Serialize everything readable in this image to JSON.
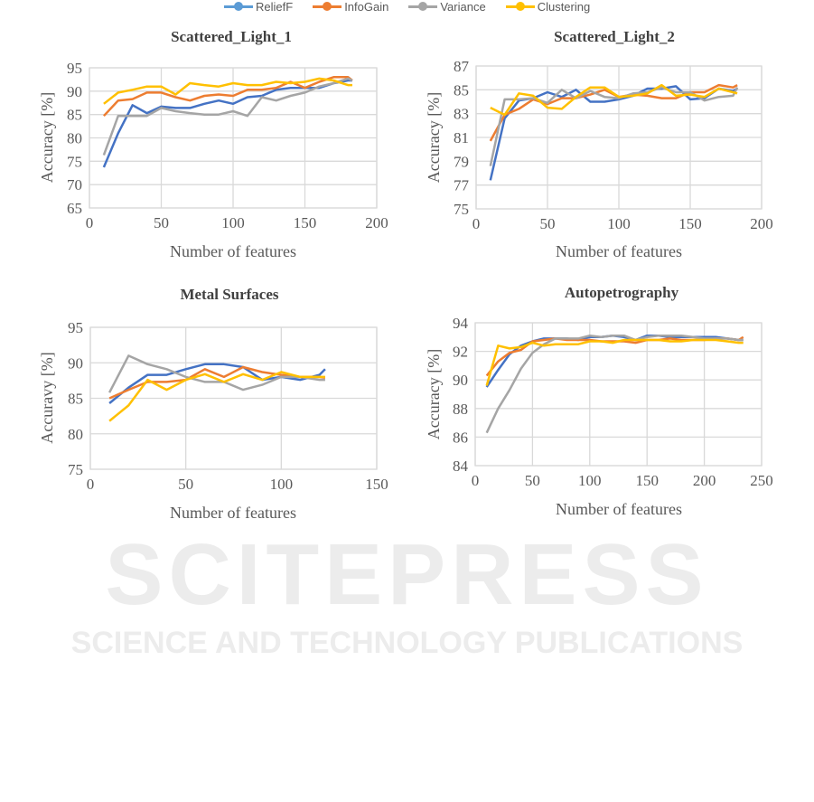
{
  "legend": [
    {
      "name": "ReliefF",
      "color": "#4472C4",
      "marker": "#5B9BD5"
    },
    {
      "name": "InfoGain",
      "color": "#ED7D31",
      "marker": "#ED7D31"
    },
    {
      "name": "Variance",
      "color": "#A5A5A5",
      "marker": "#A5A5A5"
    },
    {
      "name": "Clustering",
      "color": "#FFC000",
      "marker": "#FFC000"
    }
  ],
  "watermark": {
    "title": "SCITEPRESS",
    "subtitle": "SCIENCE AND TECHNOLOGY PUBLICATIONS"
  },
  "chart_data": [
    {
      "type": "line",
      "title": "Scattered_Light_1",
      "xlabel": "Number of features",
      "ylabel": "Accuracy [%]",
      "xlim": [
        0,
        200
      ],
      "ylim": [
        65,
        95
      ],
      "xticks": [
        0,
        50,
        100,
        150,
        200
      ],
      "yticks": [
        65,
        70,
        75,
        80,
        85,
        90,
        95
      ],
      "grid": true,
      "legend": "top",
      "x": [
        10,
        20,
        30,
        40,
        50,
        60,
        70,
        80,
        90,
        100,
        110,
        120,
        130,
        140,
        150,
        160,
        170,
        180,
        183
      ],
      "series": [
        {
          "name": "ReliefF",
          "values": [
            73.7,
            81,
            87,
            85.3,
            86.7,
            86.4,
            86.4,
            87.3,
            88,
            87.3,
            88.7,
            89,
            90.3,
            90.7,
            90.7,
            90.7,
            91.7,
            92.3,
            92.3
          ]
        },
        {
          "name": "InfoGain",
          "values": [
            84.7,
            88,
            88.3,
            89.7,
            89.7,
            88.7,
            88,
            89,
            89.3,
            89,
            90.3,
            90.3,
            90.7,
            92,
            90.7,
            92,
            93,
            93,
            92.3
          ]
        },
        {
          "name": "Variance",
          "values": [
            76.3,
            84.7,
            84.7,
            84.7,
            86.4,
            85.7,
            85.3,
            85,
            85,
            85.7,
            84.7,
            88.7,
            88,
            89,
            89.7,
            91,
            91.7,
            92.7,
            92.3
          ]
        },
        {
          "name": "Clustering",
          "values": [
            87.3,
            89.7,
            90.3,
            91,
            91,
            89.3,
            91.7,
            91.3,
            91,
            91.7,
            91.3,
            91.3,
            92,
            91.7,
            92,
            92.7,
            92.3,
            91.3,
            91.3
          ]
        }
      ]
    },
    {
      "type": "line",
      "title": "Scattered_Light_2",
      "xlabel": "Number of features",
      "ylabel": "Accuracy [%]",
      "xlim": [
        0,
        200
      ],
      "ylim": [
        75,
        87
      ],
      "xticks": [
        0,
        50,
        100,
        150,
        200
      ],
      "yticks": [
        75,
        77,
        79,
        81,
        83,
        85,
        87
      ],
      "grid": true,
      "legend": "top",
      "x": [
        10,
        20,
        30,
        40,
        50,
        60,
        70,
        80,
        90,
        100,
        110,
        120,
        130,
        140,
        150,
        160,
        170,
        180,
        183
      ],
      "series": [
        {
          "name": "ReliefF",
          "values": [
            77.4,
            82.6,
            84.1,
            84.3,
            84.8,
            84.4,
            85,
            84,
            84,
            84.2,
            84.5,
            85.1,
            85.1,
            85.3,
            84.2,
            84.3,
            85.1,
            84.9,
            85.1
          ]
        },
        {
          "name": "InfoGain",
          "values": [
            80.7,
            82.9,
            83.4,
            84.2,
            83.8,
            84.3,
            84.3,
            84.6,
            85,
            84.4,
            84.6,
            84.5,
            84.3,
            84.3,
            84.8,
            84.8,
            85.4,
            85.2,
            85.4
          ]
        },
        {
          "name": "Variance",
          "values": [
            78.6,
            84.2,
            84.2,
            84.3,
            83.9,
            85,
            84.3,
            84.9,
            84.4,
            84.3,
            84.7,
            84.8,
            85.2,
            84.8,
            84.8,
            84.1,
            84.4,
            84.5,
            85.2
          ]
        },
        {
          "name": "Clustering",
          "values": [
            83.5,
            82.9,
            84.7,
            84.5,
            83.5,
            83.4,
            84.4,
            85.2,
            85.2,
            84.4,
            84.5,
            84.7,
            85.4,
            84.5,
            84.6,
            84.4,
            85.1,
            84.8,
            84.7
          ]
        }
      ]
    },
    {
      "type": "line",
      "title": "Metal Surfaces",
      "xlabel": "Number of features",
      "ylabel": "Accuravy [%]",
      "xlim": [
        0,
        150
      ],
      "ylim": [
        75,
        95
      ],
      "xticks": [
        0,
        50,
        100,
        150
      ],
      "yticks": [
        75,
        80,
        85,
        90,
        95
      ],
      "grid": true,
      "legend": "top",
      "x": [
        10,
        20,
        30,
        40,
        50,
        60,
        70,
        80,
        90,
        100,
        110,
        120,
        123
      ],
      "series": [
        {
          "name": "ReliefF",
          "values": [
            84.3,
            86.5,
            88.3,
            88.3,
            89.1,
            89.8,
            89.8,
            89.4,
            87.6,
            88,
            87.6,
            88.3,
            89.1
          ]
        },
        {
          "name": "InfoGain",
          "values": [
            85,
            86.2,
            87.3,
            87.3,
            87.6,
            89.1,
            88,
            89.4,
            88.7,
            88.3,
            88,
            88,
            87.9
          ]
        },
        {
          "name": "Variance",
          "values": [
            85.8,
            91,
            89.8,
            89.1,
            88,
            87.3,
            87.3,
            86.2,
            86.9,
            88,
            88,
            87.6,
            87.6
          ]
        },
        {
          "name": "Clustering",
          "values": [
            81.8,
            84,
            87.6,
            86.2,
            87.6,
            88.4,
            87.3,
            88.4,
            87.6,
            88.7,
            88,
            88,
            88
          ]
        }
      ]
    },
    {
      "type": "line",
      "title": "Autopetrography",
      "xlabel": "Number of features",
      "ylabel": "Accuracy [%]",
      "xlim": [
        0,
        250
      ],
      "ylim": [
        84,
        94
      ],
      "xticks": [
        0,
        50,
        100,
        150,
        200,
        250
      ],
      "yticks": [
        84,
        86,
        88,
        90,
        92,
        94
      ],
      "grid": true,
      "legend": "top",
      "x": [
        10,
        20,
        30,
        40,
        50,
        60,
        70,
        80,
        90,
        100,
        110,
        120,
        130,
        140,
        150,
        160,
        170,
        180,
        190,
        200,
        210,
        220,
        230,
        234
      ],
      "series": [
        {
          "name": "ReliefF",
          "values": [
            89.5,
            90.7,
            91.8,
            92.4,
            92.7,
            92.9,
            92.9,
            92.9,
            92.8,
            93,
            93,
            93.1,
            93,
            92.8,
            93.1,
            93.1,
            93,
            93,
            93,
            93,
            93,
            92.9,
            92.8,
            92.8
          ]
        },
        {
          "name": "InfoGain",
          "values": [
            90.3,
            91.3,
            91.9,
            92.1,
            92.7,
            92.8,
            92.9,
            92.8,
            92.8,
            92.8,
            92.7,
            92.7,
            92.7,
            92.6,
            92.8,
            92.8,
            92.9,
            92.8,
            92.8,
            92.8,
            92.9,
            92.9,
            92.8,
            93
          ]
        },
        {
          "name": "Variance",
          "values": [
            86.3,
            88,
            89.3,
            90.8,
            91.9,
            92.5,
            92.9,
            92.9,
            92.9,
            93.1,
            93,
            93.1,
            93.1,
            92.8,
            93,
            93.1,
            93.1,
            93.1,
            93,
            92.9,
            92.9,
            92.9,
            92.8,
            92.8
          ]
        },
        {
          "name": "Clustering",
          "values": [
            89.6,
            92.4,
            92.2,
            92.3,
            92.6,
            92.4,
            92.5,
            92.5,
            92.5,
            92.7,
            92.7,
            92.6,
            92.8,
            92.8,
            92.8,
            92.8,
            92.7,
            92.7,
            92.8,
            92.8,
            92.8,
            92.7,
            92.6,
            92.6
          ]
        }
      ]
    }
  ]
}
